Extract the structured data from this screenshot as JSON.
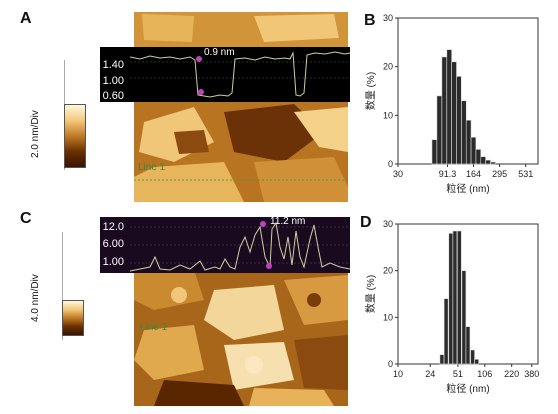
{
  "panels": {
    "A": {
      "letter": "A",
      "colorbar_label": "2.0 nm/Div",
      "profile_ticks": [
        "1.40",
        "1.00",
        "0.60"
      ],
      "annotation": "0.9 nm",
      "line_label": "Line 1"
    },
    "C": {
      "letter": "C",
      "colorbar_label": "4.0 nm/Div",
      "profile_ticks": [
        "12.0",
        "6.00",
        "1.00"
      ],
      "annotation": "11.2 nm",
      "line_label": "Line 1"
    },
    "B": {
      "letter": "B"
    },
    "D": {
      "letter": "D"
    }
  },
  "chart_data": [
    {
      "panel": "B",
      "type": "bar",
      "xlabel": "粒径 (nm)",
      "ylabel": "数量 (%)",
      "x_tick_labels": [
        "30",
        "91.3",
        "164",
        "295",
        "531"
      ],
      "y_ticks": [
        0,
        10,
        20,
        30
      ],
      "ylim": [
        0,
        30
      ],
      "x_scale": "log",
      "xlim": [
        30,
        700
      ],
      "bins": [
        {
          "center": 68,
          "value": 5
        },
        {
          "center": 76,
          "value": 14
        },
        {
          "center": 85,
          "value": 22
        },
        {
          "center": 95,
          "value": 23.5
        },
        {
          "center": 106,
          "value": 21
        },
        {
          "center": 118,
          "value": 18
        },
        {
          "center": 132,
          "value": 13
        },
        {
          "center": 147,
          "value": 9
        },
        {
          "center": 164,
          "value": 5.5
        },
        {
          "center": 183,
          "value": 3
        },
        {
          "center": 204,
          "value": 1.5
        },
        {
          "center": 228,
          "value": 0.8
        },
        {
          "center": 255,
          "value": 0.4
        }
      ]
    },
    {
      "panel": "D",
      "type": "bar",
      "xlabel": "粒径 (nm)",
      "ylabel": "数量 (%)",
      "x_tick_labels": [
        "10",
        "24",
        "51",
        "106",
        "220",
        "380"
      ],
      "y_ticks": [
        0,
        10,
        20,
        30
      ],
      "ylim": [
        0,
        30
      ],
      "x_scale": "log",
      "xlim": [
        10,
        450
      ],
      "bins": [
        {
          "center": 33,
          "value": 2
        },
        {
          "center": 37,
          "value": 14
        },
        {
          "center": 42,
          "value": 28
        },
        {
          "center": 47,
          "value": 28.5
        },
        {
          "center": 53,
          "value": 28.5
        },
        {
          "center": 60,
          "value": 20
        },
        {
          "center": 67,
          "value": 8
        },
        {
          "center": 76,
          "value": 3
        },
        {
          "center": 85,
          "value": 1
        }
      ]
    }
  ],
  "colors": {
    "afm_dark": "#5a2a00",
    "afm_mid": "#b8731f",
    "afm_light": "#f5d089",
    "profile_line": "#cfcfa0",
    "bar_fill": "#2b2b2b",
    "marker": "#c040c0"
  }
}
